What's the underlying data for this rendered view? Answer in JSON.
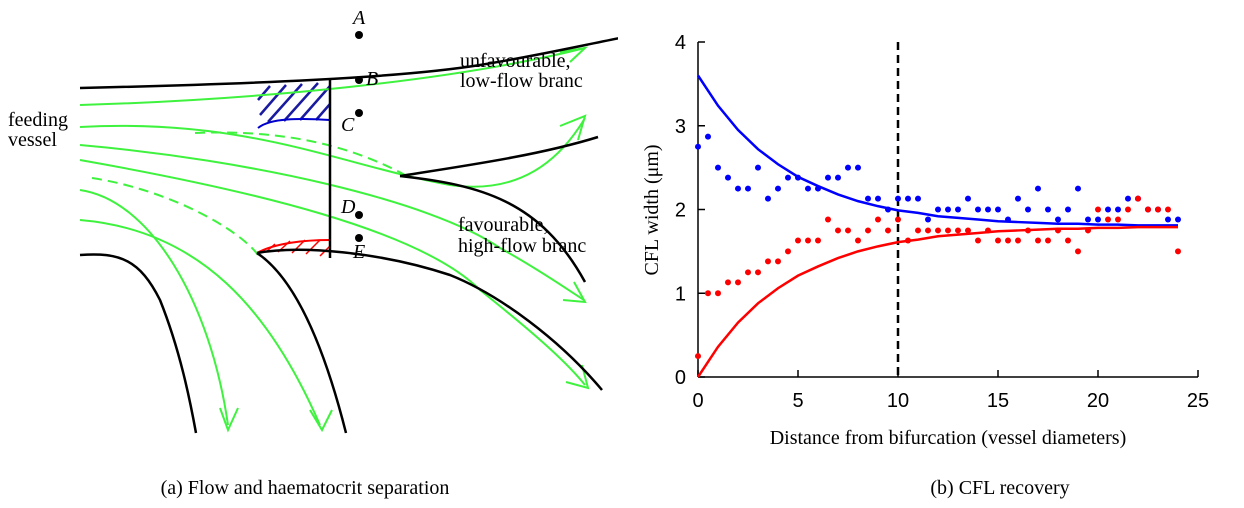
{
  "panel_a": {
    "points": [
      "A",
      "B",
      "C",
      "D",
      "E"
    ],
    "feeding": [
      "feeding",
      "vessel"
    ],
    "upper_branch": [
      "unfavourable,",
      "low-flow branc"
    ],
    "lower_branch": [
      "favourable,",
      "high-flow branc"
    ],
    "caption": "(a) Flow and haematocrit separation"
  },
  "chart_data": {
    "type": "scatter",
    "caption": "(b) CFL recovery",
    "x_label": "Distance from bifurcation (vessel diameters)",
    "y_label": "CFL width (μm)",
    "xlim": [
      0,
      25
    ],
    "xticks": [
      0,
      5,
      10,
      15,
      20,
      25
    ],
    "ylim": [
      0,
      4
    ],
    "yticks": [
      0,
      1,
      2,
      3,
      4
    ],
    "vline": 10,
    "series": [
      {
        "color": "#0000ff",
        "style": "dots",
        "x": [
          0,
          0.5,
          1,
          1.5,
          2,
          2.5,
          3,
          3.5,
          4,
          4.5,
          5,
          5.5,
          6,
          6.5,
          7,
          7.5,
          8,
          8.5,
          9,
          9.5,
          10,
          10.5,
          11,
          11.5,
          12,
          12.5,
          13,
          13.5,
          14,
          14.5,
          15,
          15.5,
          16,
          16.5,
          17,
          17.5,
          18,
          18.5,
          19,
          19.5,
          20,
          20.5,
          21,
          21.5,
          22,
          22.5,
          23,
          23.5,
          24
        ],
        "values": [
          2.75,
          2.87,
          2.5,
          2.38,
          2.25,
          2.25,
          2.5,
          2.13,
          2.25,
          2.38,
          2.38,
          2.25,
          2.25,
          2.38,
          2.38,
          2.5,
          2.5,
          2.13,
          2.13,
          2.0,
          2.13,
          2.13,
          2.13,
          1.88,
          2.0,
          2.0,
          2.0,
          2.13,
          2.0,
          2.0,
          2.0,
          1.88,
          2.13,
          2.0,
          2.25,
          2.0,
          1.88,
          2.0,
          2.25,
          1.88,
          1.88,
          2.0,
          2.0,
          2.13,
          2.13,
          2.0,
          2.0,
          1.88,
          1.88
        ]
      },
      {
        "color": "#ff0000",
        "style": "dots",
        "x": [
          0,
          0.5,
          1,
          1.5,
          2,
          2.5,
          3,
          3.5,
          4,
          4.5,
          5,
          5.5,
          6,
          6.5,
          7,
          7.5,
          8,
          8.5,
          9,
          9.5,
          10,
          10.5,
          11,
          11.5,
          12,
          12.5,
          13,
          13.5,
          14,
          14.5,
          15,
          15.5,
          16,
          16.5,
          17,
          17.5,
          18,
          18.5,
          19,
          19.5,
          20,
          20.5,
          21,
          21.5,
          22,
          22.5,
          23,
          23.5,
          24
        ],
        "values": [
          0.25,
          1.0,
          1.0,
          1.13,
          1.13,
          1.25,
          1.25,
          1.38,
          1.38,
          1.5,
          1.63,
          1.63,
          1.63,
          1.88,
          1.75,
          1.75,
          1.63,
          1.75,
          1.88,
          1.75,
          1.88,
          1.63,
          1.75,
          1.75,
          1.75,
          1.75,
          1.75,
          1.75,
          1.63,
          1.75,
          1.63,
          1.63,
          1.63,
          1.75,
          1.63,
          1.63,
          1.75,
          1.63,
          1.5,
          1.75,
          2.0,
          1.88,
          1.88,
          2.0,
          2.13,
          2.0,
          2.0,
          2.0,
          1.5
        ]
      },
      {
        "color": "#0000ff",
        "style": "line",
        "x": [
          0,
          1,
          2,
          3,
          4,
          5,
          6,
          7,
          8,
          9,
          10,
          11,
          12,
          13,
          14,
          15,
          16,
          17,
          18,
          19,
          20,
          21,
          22,
          23,
          24
        ],
        "values": [
          3.6,
          3.24,
          2.95,
          2.72,
          2.54,
          2.39,
          2.28,
          2.18,
          2.1,
          2.04,
          1.99,
          1.96,
          1.92,
          1.9,
          1.88,
          1.86,
          1.85,
          1.84,
          1.83,
          1.83,
          1.82,
          1.82,
          1.81,
          1.81,
          1.81
        ]
      },
      {
        "color": "#ff0000",
        "style": "line",
        "x": [
          0,
          1,
          2,
          3,
          4,
          5,
          6,
          7,
          8,
          9,
          10,
          11,
          12,
          13,
          14,
          15,
          16,
          17,
          18,
          19,
          20,
          21,
          22,
          23,
          24
        ],
        "values": [
          0,
          0.36,
          0.65,
          0.88,
          1.06,
          1.21,
          1.32,
          1.42,
          1.5,
          1.56,
          1.61,
          1.64,
          1.68,
          1.7,
          1.72,
          1.74,
          1.75,
          1.76,
          1.77,
          1.77,
          1.78,
          1.78,
          1.79,
          1.79,
          1.79
        ]
      }
    ]
  }
}
